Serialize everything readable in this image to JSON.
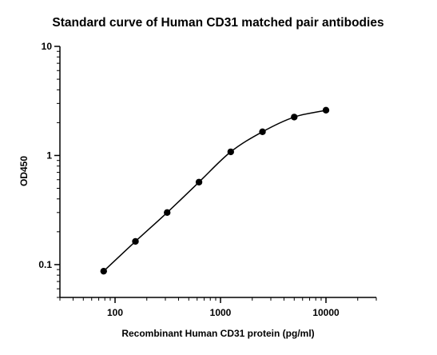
{
  "chart_data": {
    "type": "scatter",
    "title": "Standard curve of Human CD31 matched pair antibodies",
    "xlabel": "Recombinant Human CD31 protein (pg/ml)",
    "ylabel": "OD450",
    "xscale": "log",
    "yscale": "log",
    "xlim": [
      30,
      30000
    ],
    "ylim": [
      0.05,
      10
    ],
    "xticks": [
      100,
      1000,
      10000
    ],
    "xtick_labels": [
      "100",
      "1000",
      "10000"
    ],
    "yticks": [
      0.1,
      1,
      10
    ],
    "ytick_labels": [
      "0.1",
      "1",
      "10"
    ],
    "grid": false,
    "legend": "none",
    "fit_line": true,
    "series": [
      {
        "x": [
          78,
          156,
          312,
          625,
          1250,
          2500,
          5000,
          10000
        ],
        "y": [
          0.087,
          0.163,
          0.3,
          0.57,
          1.08,
          1.65,
          2.25,
          2.6
        ]
      }
    ]
  }
}
